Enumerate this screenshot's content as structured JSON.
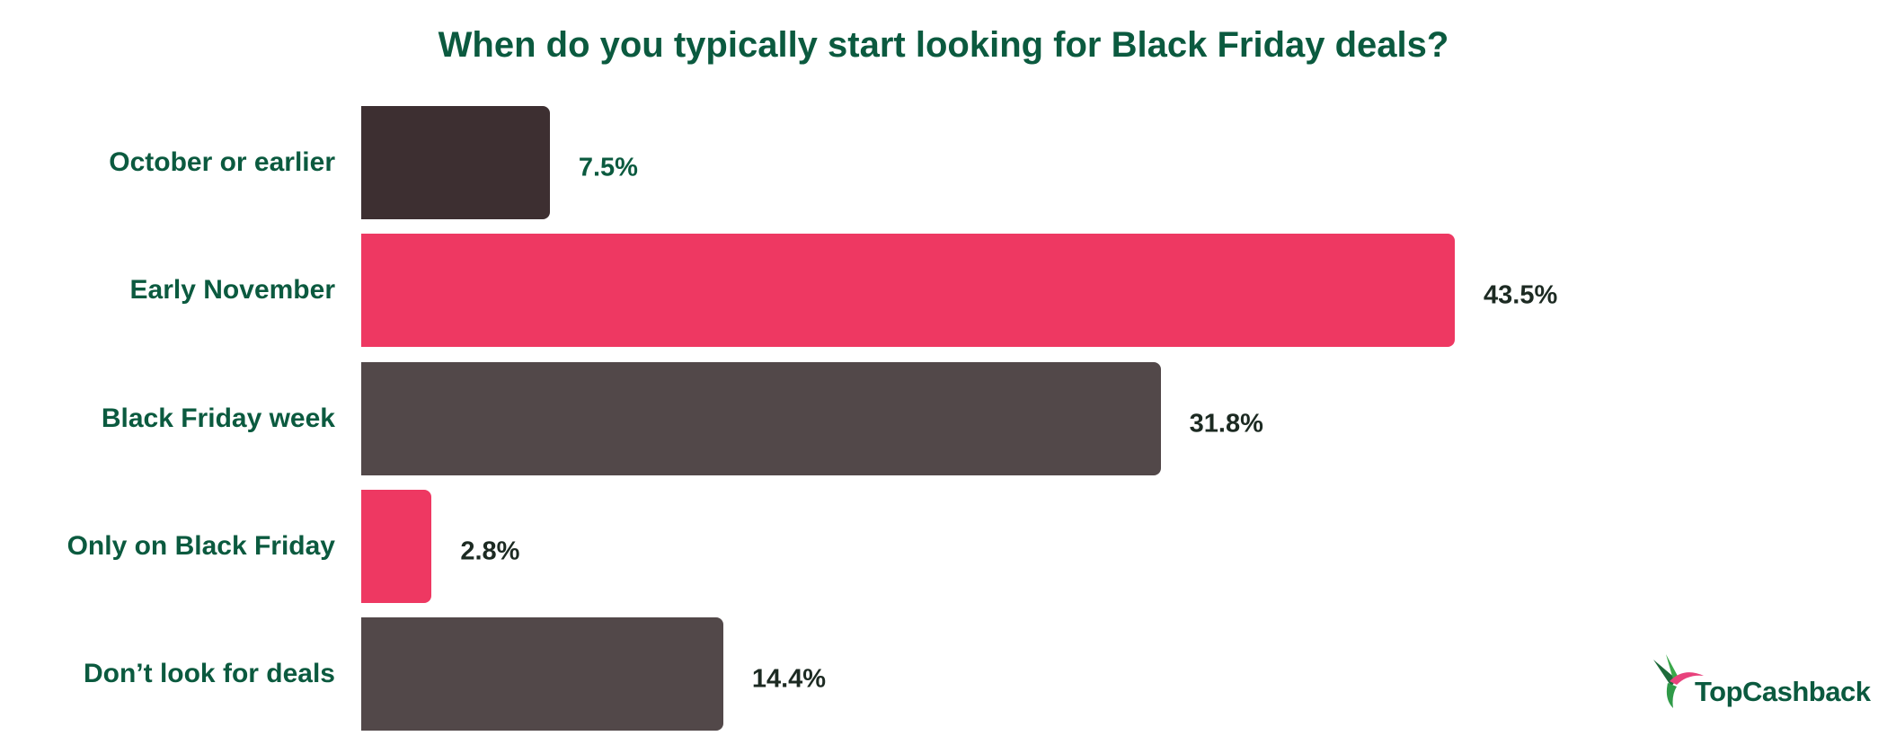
{
  "chart_data": {
    "type": "bar",
    "orientation": "horizontal",
    "title": "When do you typically start looking for Black Friday deals?",
    "categories": [
      "October or earlier",
      "Early November",
      "Black Friday week",
      "Only on Black Friday",
      "Don’t look for deals"
    ],
    "values": [
      7.5,
      43.5,
      31.8,
      2.8,
      14.4
    ],
    "value_labels": [
      "7.5%",
      "43.5%",
      "31.8%",
      "2.8%",
      "14.4%"
    ],
    "unit": "%",
    "bar_colors": [
      "#3d2f31",
      "#ee3862",
      "#524849",
      "#ee3862",
      "#524849"
    ],
    "xlim": [
      0,
      43.5
    ],
    "grid": false,
    "legend": "none"
  },
  "colors": {
    "title": "#0b5a3f",
    "logo_pink": "#e8427c",
    "logo_green": "#1a8a3c"
  },
  "logo": {
    "text": "TopCashback",
    "icon": "hummingbird-icon"
  }
}
